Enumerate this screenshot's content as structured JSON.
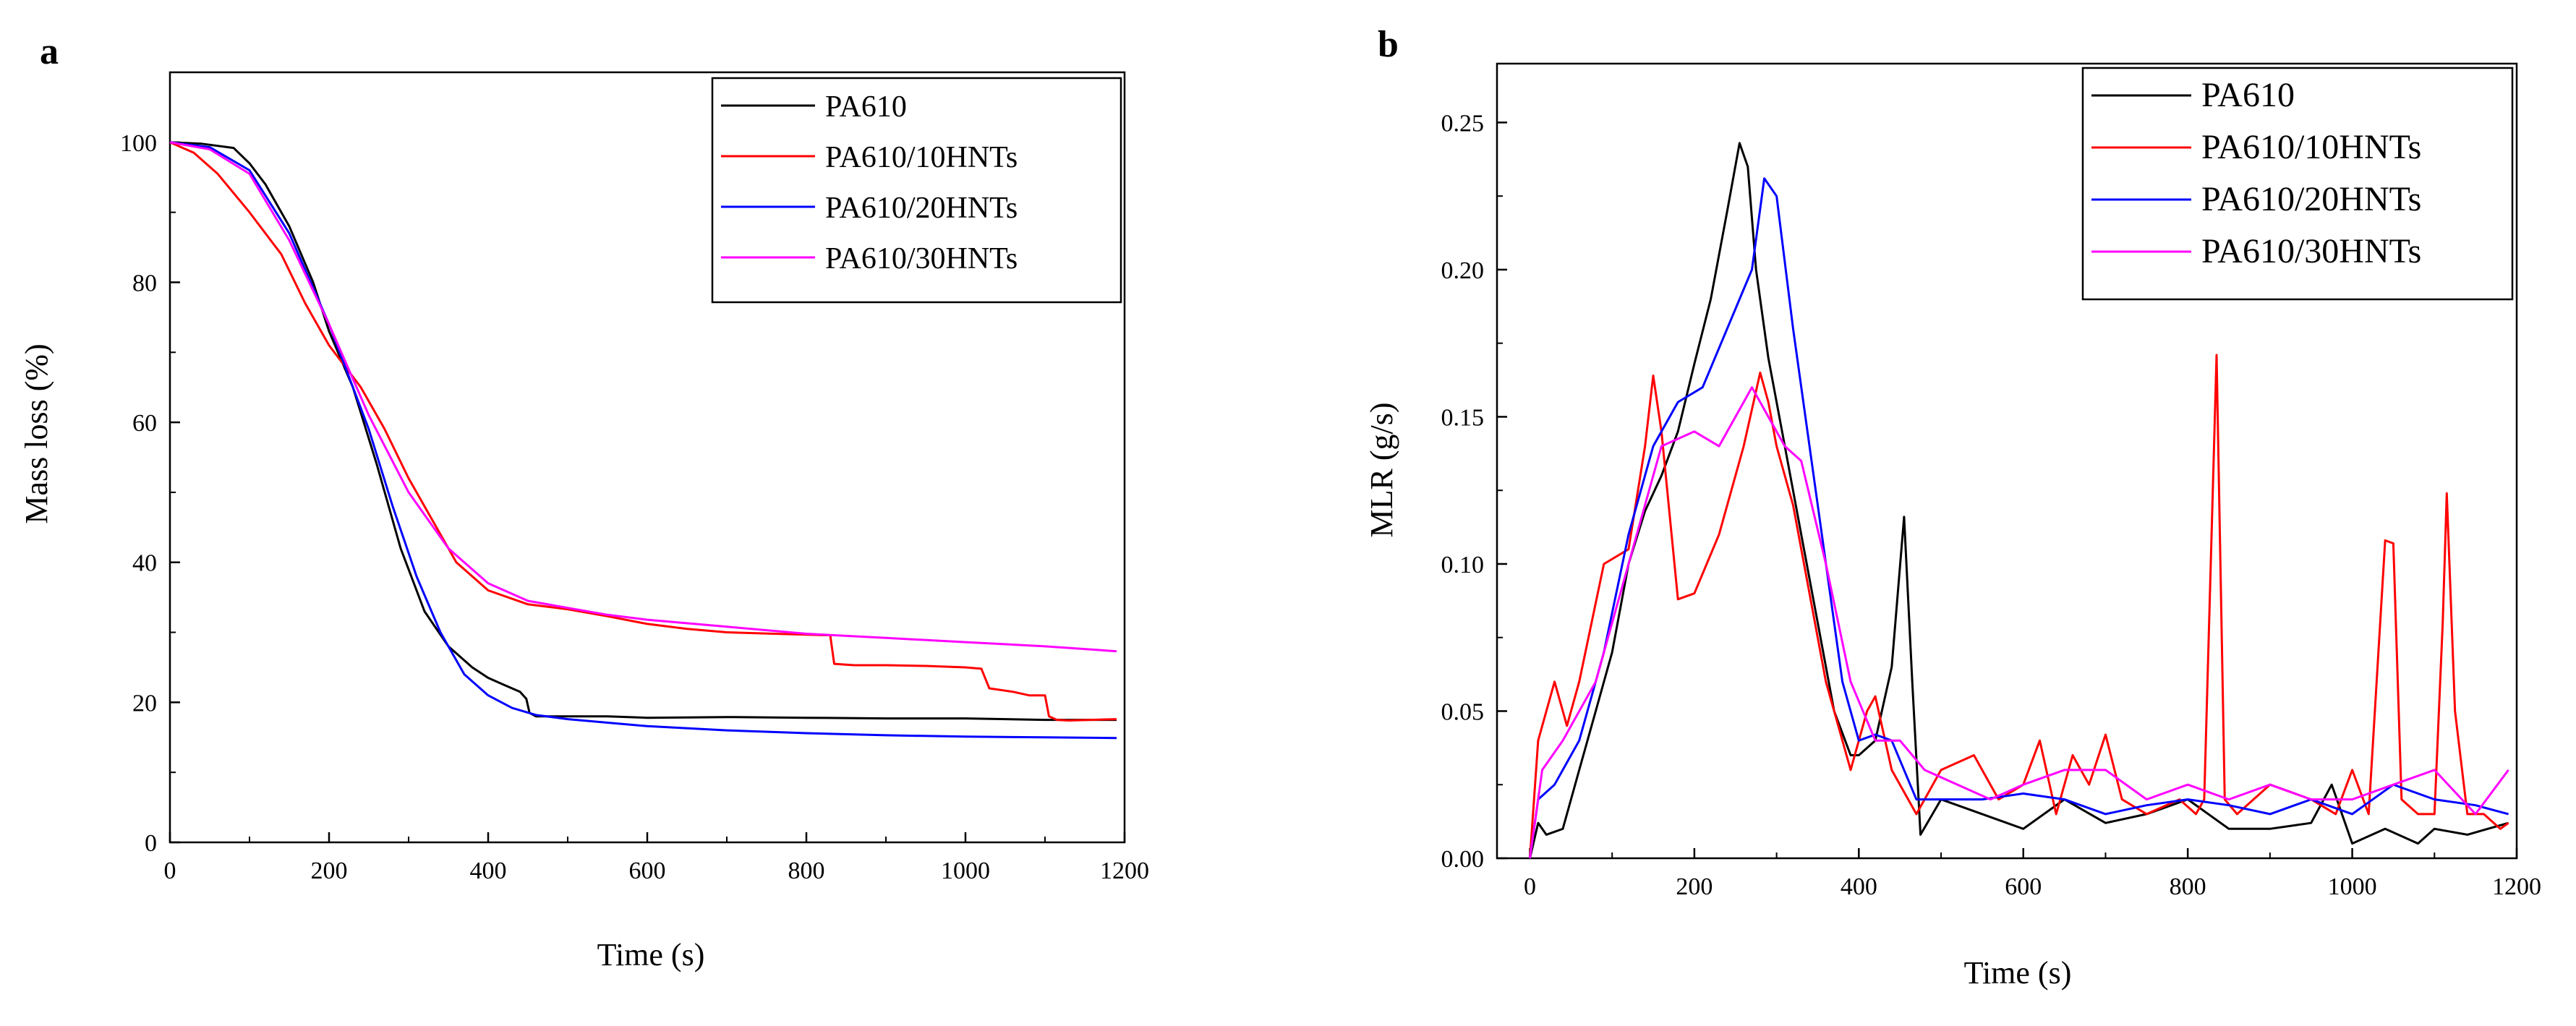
{
  "colors": {
    "PA610": "#000000",
    "PA610/10HNTs": "#ff0000",
    "PA610/20HNTs": "#0000ff",
    "PA610/30HNTs": "#ff00ff"
  },
  "chart_data": [
    {
      "panel_label": "a",
      "type": "line",
      "xlabel": "Time (s)",
      "ylabel": "Mass loss (%)",
      "xlim": [
        0,
        1200
      ],
      "ylim": [
        0,
        110
      ],
      "xticks": [
        0,
        200,
        400,
        600,
        800,
        1000,
        1200
      ],
      "yticks": [
        0,
        20,
        40,
        60,
        80,
        100
      ],
      "legend_position": "top-right",
      "series": [
        {
          "name": "PA610",
          "x": [
            0,
            40,
            80,
            100,
            120,
            150,
            180,
            200,
            230,
            260,
            290,
            320,
            350,
            380,
            400,
            420,
            440,
            448,
            452,
            460,
            500,
            550,
            600,
            700,
            800,
            900,
            1000,
            1100,
            1190
          ],
          "y": [
            100,
            99.8,
            99.2,
            97,
            94,
            88,
            80,
            73,
            65,
            54,
            42,
            33,
            28,
            25,
            23.5,
            22.5,
            21.5,
            20.5,
            18.5,
            18,
            18,
            18,
            17.8,
            17.9,
            17.8,
            17.7,
            17.7,
            17.5,
            17.5
          ]
        },
        {
          "name": "PA610/10HNTs",
          "x": [
            0,
            30,
            60,
            100,
            140,
            170,
            200,
            240,
            270,
            300,
            330,
            360,
            400,
            450,
            500,
            550,
            600,
            650,
            700,
            760,
            820,
            830,
            835,
            860,
            900,
            950,
            1000,
            1020,
            1030,
            1060,
            1080,
            1100,
            1105,
            1115,
            1130,
            1190
          ],
          "y": [
            100,
            98.5,
            95.5,
            90,
            84,
            77,
            71,
            65,
            59,
            52,
            46,
            40,
            36,
            34,
            33.3,
            32.3,
            31.2,
            30.5,
            30,
            29.8,
            29.6,
            29.6,
            25.5,
            25.3,
            25.3,
            25.2,
            25,
            24.8,
            22,
            21.5,
            21,
            21,
            18,
            17.5,
            17.4,
            17.6
          ]
        },
        {
          "name": "PA610/20HNTs",
          "x": [
            0,
            50,
            100,
            150,
            200,
            250,
            280,
            310,
            340,
            370,
            400,
            430,
            460,
            500,
            600,
            700,
            800,
            900,
            1000,
            1100,
            1190
          ],
          "y": [
            100,
            99.3,
            96,
            87,
            74,
            59,
            48,
            38,
            30,
            24,
            21,
            19.2,
            18.2,
            17.6,
            16.6,
            16,
            15.6,
            15.3,
            15.1,
            15,
            14.9
          ]
        },
        {
          "name": "PA610/30HNTs",
          "x": [
            0,
            50,
            100,
            150,
            200,
            250,
            300,
            350,
            400,
            450,
            500,
            550,
            600,
            700,
            800,
            900,
            1000,
            1100,
            1190
          ],
          "y": [
            100,
            99,
            95.5,
            86,
            74,
            61,
            50,
            42,
            37,
            34.5,
            33.5,
            32.5,
            31.8,
            30.8,
            29.8,
            29.2,
            28.6,
            28,
            27.3
          ]
        }
      ]
    },
    {
      "panel_label": "b",
      "type": "line",
      "xlabel": "Time (s)",
      "ylabel": "MLR (g/s)",
      "xlim": [
        -40,
        1200
      ],
      "ylim": [
        0,
        0.27
      ],
      "xticks": [
        0,
        200,
        400,
        600,
        800,
        1000,
        1200
      ],
      "yticks": [
        0.0,
        0.05,
        0.1,
        0.15,
        0.2,
        0.25
      ],
      "legend_position": "top-right",
      "series": [
        {
          "name": "PA610",
          "x": [
            0,
            10,
            20,
            40,
            60,
            80,
            100,
            120,
            140,
            160,
            180,
            200,
            220,
            240,
            255,
            265,
            275,
            290,
            310,
            330,
            350,
            370,
            390,
            400,
            420,
            440,
            455,
            465,
            475,
            500,
            550,
            600,
            650,
            700,
            750,
            800,
            850,
            900,
            950,
            975,
            1000,
            1040,
            1080,
            1100,
            1140,
            1190
          ],
          "y": [
            0,
            0.012,
            0.008,
            0.01,
            0.03,
            0.05,
            0.07,
            0.1,
            0.118,
            0.13,
            0.145,
            0.168,
            0.19,
            0.22,
            0.243,
            0.235,
            0.2,
            0.17,
            0.14,
            0.11,
            0.08,
            0.05,
            0.035,
            0.035,
            0.04,
            0.065,
            0.116,
            0.06,
            0.008,
            0.02,
            0.015,
            0.01,
            0.02,
            0.012,
            0.015,
            0.02,
            0.01,
            0.01,
            0.012,
            0.025,
            0.005,
            0.01,
            0.005,
            0.01,
            0.008,
            0.012
          ]
        },
        {
          "name": "PA610/10HNTs",
          "x": [
            0,
            10,
            30,
            45,
            60,
            90,
            120,
            140,
            150,
            160,
            180,
            200,
            230,
            260,
            280,
            290,
            300,
            320,
            360,
            390,
            410,
            420,
            440,
            470,
            500,
            540,
            570,
            600,
            620,
            640,
            660,
            680,
            700,
            720,
            750,
            790,
            810,
            820,
            835,
            845,
            860,
            900,
            950,
            980,
            1000,
            1020,
            1040,
            1050,
            1060,
            1080,
            1100,
            1110,
            1115,
            1125,
            1140,
            1160,
            1180,
            1190
          ],
          "y": [
            0,
            0.04,
            0.06,
            0.045,
            0.06,
            0.1,
            0.105,
            0.14,
            0.164,
            0.145,
            0.088,
            0.09,
            0.11,
            0.14,
            0.165,
            0.155,
            0.14,
            0.12,
            0.06,
            0.03,
            0.05,
            0.055,
            0.03,
            0.015,
            0.03,
            0.035,
            0.02,
            0.025,
            0.04,
            0.015,
            0.035,
            0.025,
            0.042,
            0.02,
            0.015,
            0.02,
            0.015,
            0.02,
            0.171,
            0.02,
            0.015,
            0.025,
            0.02,
            0.015,
            0.03,
            0.015,
            0.108,
            0.107,
            0.02,
            0.015,
            0.015,
            0.08,
            0.124,
            0.05,
            0.015,
            0.015,
            0.01,
            0.012
          ]
        },
        {
          "name": "PA610/20HNTs",
          "x": [
            0,
            10,
            30,
            60,
            90,
            120,
            150,
            180,
            210,
            240,
            270,
            285,
            300,
            320,
            350,
            380,
            400,
            420,
            440,
            470,
            500,
            550,
            600,
            650,
            700,
            750,
            800,
            850,
            900,
            950,
            1000,
            1050,
            1100,
            1150,
            1190
          ],
          "y": [
            0,
            0.02,
            0.025,
            0.04,
            0.07,
            0.11,
            0.14,
            0.155,
            0.16,
            0.18,
            0.2,
            0.231,
            0.225,
            0.18,
            0.12,
            0.06,
            0.04,
            0.042,
            0.04,
            0.02,
            0.02,
            0.02,
            0.022,
            0.02,
            0.015,
            0.018,
            0.02,
            0.018,
            0.015,
            0.02,
            0.015,
            0.025,
            0.02,
            0.018,
            0.015
          ]
        },
        {
          "name": "PA610/30HNTs",
          "x": [
            0,
            15,
            40,
            80,
            120,
            160,
            200,
            230,
            250,
            270,
            290,
            310,
            330,
            360,
            390,
            420,
            450,
            480,
            520,
            560,
            600,
            650,
            700,
            750,
            800,
            850,
            900,
            950,
            1000,
            1050,
            1100,
            1150,
            1190
          ],
          "y": [
            0,
            0.03,
            0.04,
            0.06,
            0.1,
            0.14,
            0.145,
            0.14,
            0.15,
            0.16,
            0.15,
            0.14,
            0.135,
            0.1,
            0.06,
            0.04,
            0.04,
            0.03,
            0.025,
            0.02,
            0.025,
            0.03,
            0.03,
            0.02,
            0.025,
            0.02,
            0.025,
            0.02,
            0.02,
            0.025,
            0.03,
            0.015,
            0.03
          ]
        }
      ]
    }
  ]
}
